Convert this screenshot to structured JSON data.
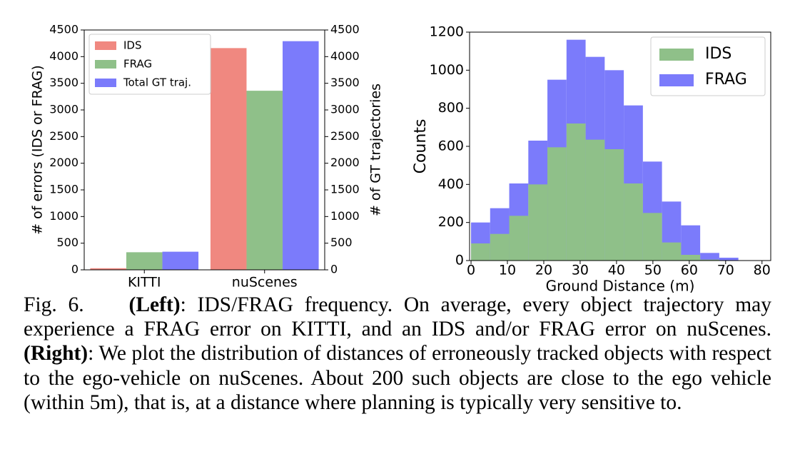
{
  "chart_data": [
    {
      "type": "bar",
      "ylabel": "# of errors (IDS or FRAG)",
      "y2label": "# of GT trajectories",
      "categories": [
        "KITTI",
        "nuScenes"
      ],
      "series": [
        {
          "name": "IDS",
          "color": "#f08880",
          "values": [
            30,
            4160
          ]
        },
        {
          "name": "FRAG",
          "color": "#8fc089",
          "values": [
            330,
            3360
          ]
        },
        {
          "name": "Total GT traj.",
          "color": "#7b7bfb",
          "values": [
            340,
            4290
          ],
          "axis": "y2"
        }
      ],
      "ylim": [
        0,
        4500
      ],
      "yticks": [
        0,
        500,
        1000,
        1500,
        2000,
        2500,
        3000,
        3500,
        4000,
        4500
      ],
      "y2lim": [
        0,
        4500
      ],
      "y2ticks": [
        0,
        500,
        1000,
        1500,
        2000,
        2500,
        3000,
        3500,
        4000,
        4500
      ],
      "legend": "upper-left"
    },
    {
      "type": "histogram",
      "xlabel": "Ground Distance (m)",
      "ylabel": "Counts",
      "bins": [
        0,
        5.25,
        10.5,
        15.75,
        21,
        26.25,
        31.5,
        36.75,
        42,
        47.25,
        52.5,
        57.75,
        63,
        68.25,
        73.5
      ],
      "series": [
        {
          "name": "IDS",
          "color": "#8fc089",
          "values": [
            90,
            140,
            235,
            400,
            595,
            720,
            635,
            585,
            405,
            250,
            95,
            30,
            5,
            0
          ]
        },
        {
          "name": "FRAG",
          "color": "#7b7bfb",
          "values": [
            200,
            275,
            405,
            630,
            950,
            1160,
            1070,
            1000,
            815,
            520,
            310,
            185,
            40,
            15
          ]
        }
      ],
      "xlim": [
        -0.4,
        82.4
      ],
      "xticks": [
        0,
        10,
        20,
        30,
        40,
        50,
        60,
        70,
        80
      ],
      "ylim": [
        0,
        1200
      ],
      "yticks": [
        0,
        200,
        400,
        600,
        800,
        1000,
        1200
      ],
      "legend": "upper-right"
    }
  ],
  "caption": {
    "label": "Fig. 6.",
    "left_head": "(Left)",
    "left_text": ": IDS/FRAG frequency. On average, every object trajectory may experience a FRAG error on KITTI, and an IDS and/or FRAG error on nuScenes. ",
    "right_head": "(Right)",
    "right_text": ": We plot the distribution of distances of erroneously tracked objects with respect to the ego-vehicle on nuScenes. About 200 such objects are close to the ego vehicle (within 5m), that is, at a distance where planning is typically very sensitive to."
  }
}
